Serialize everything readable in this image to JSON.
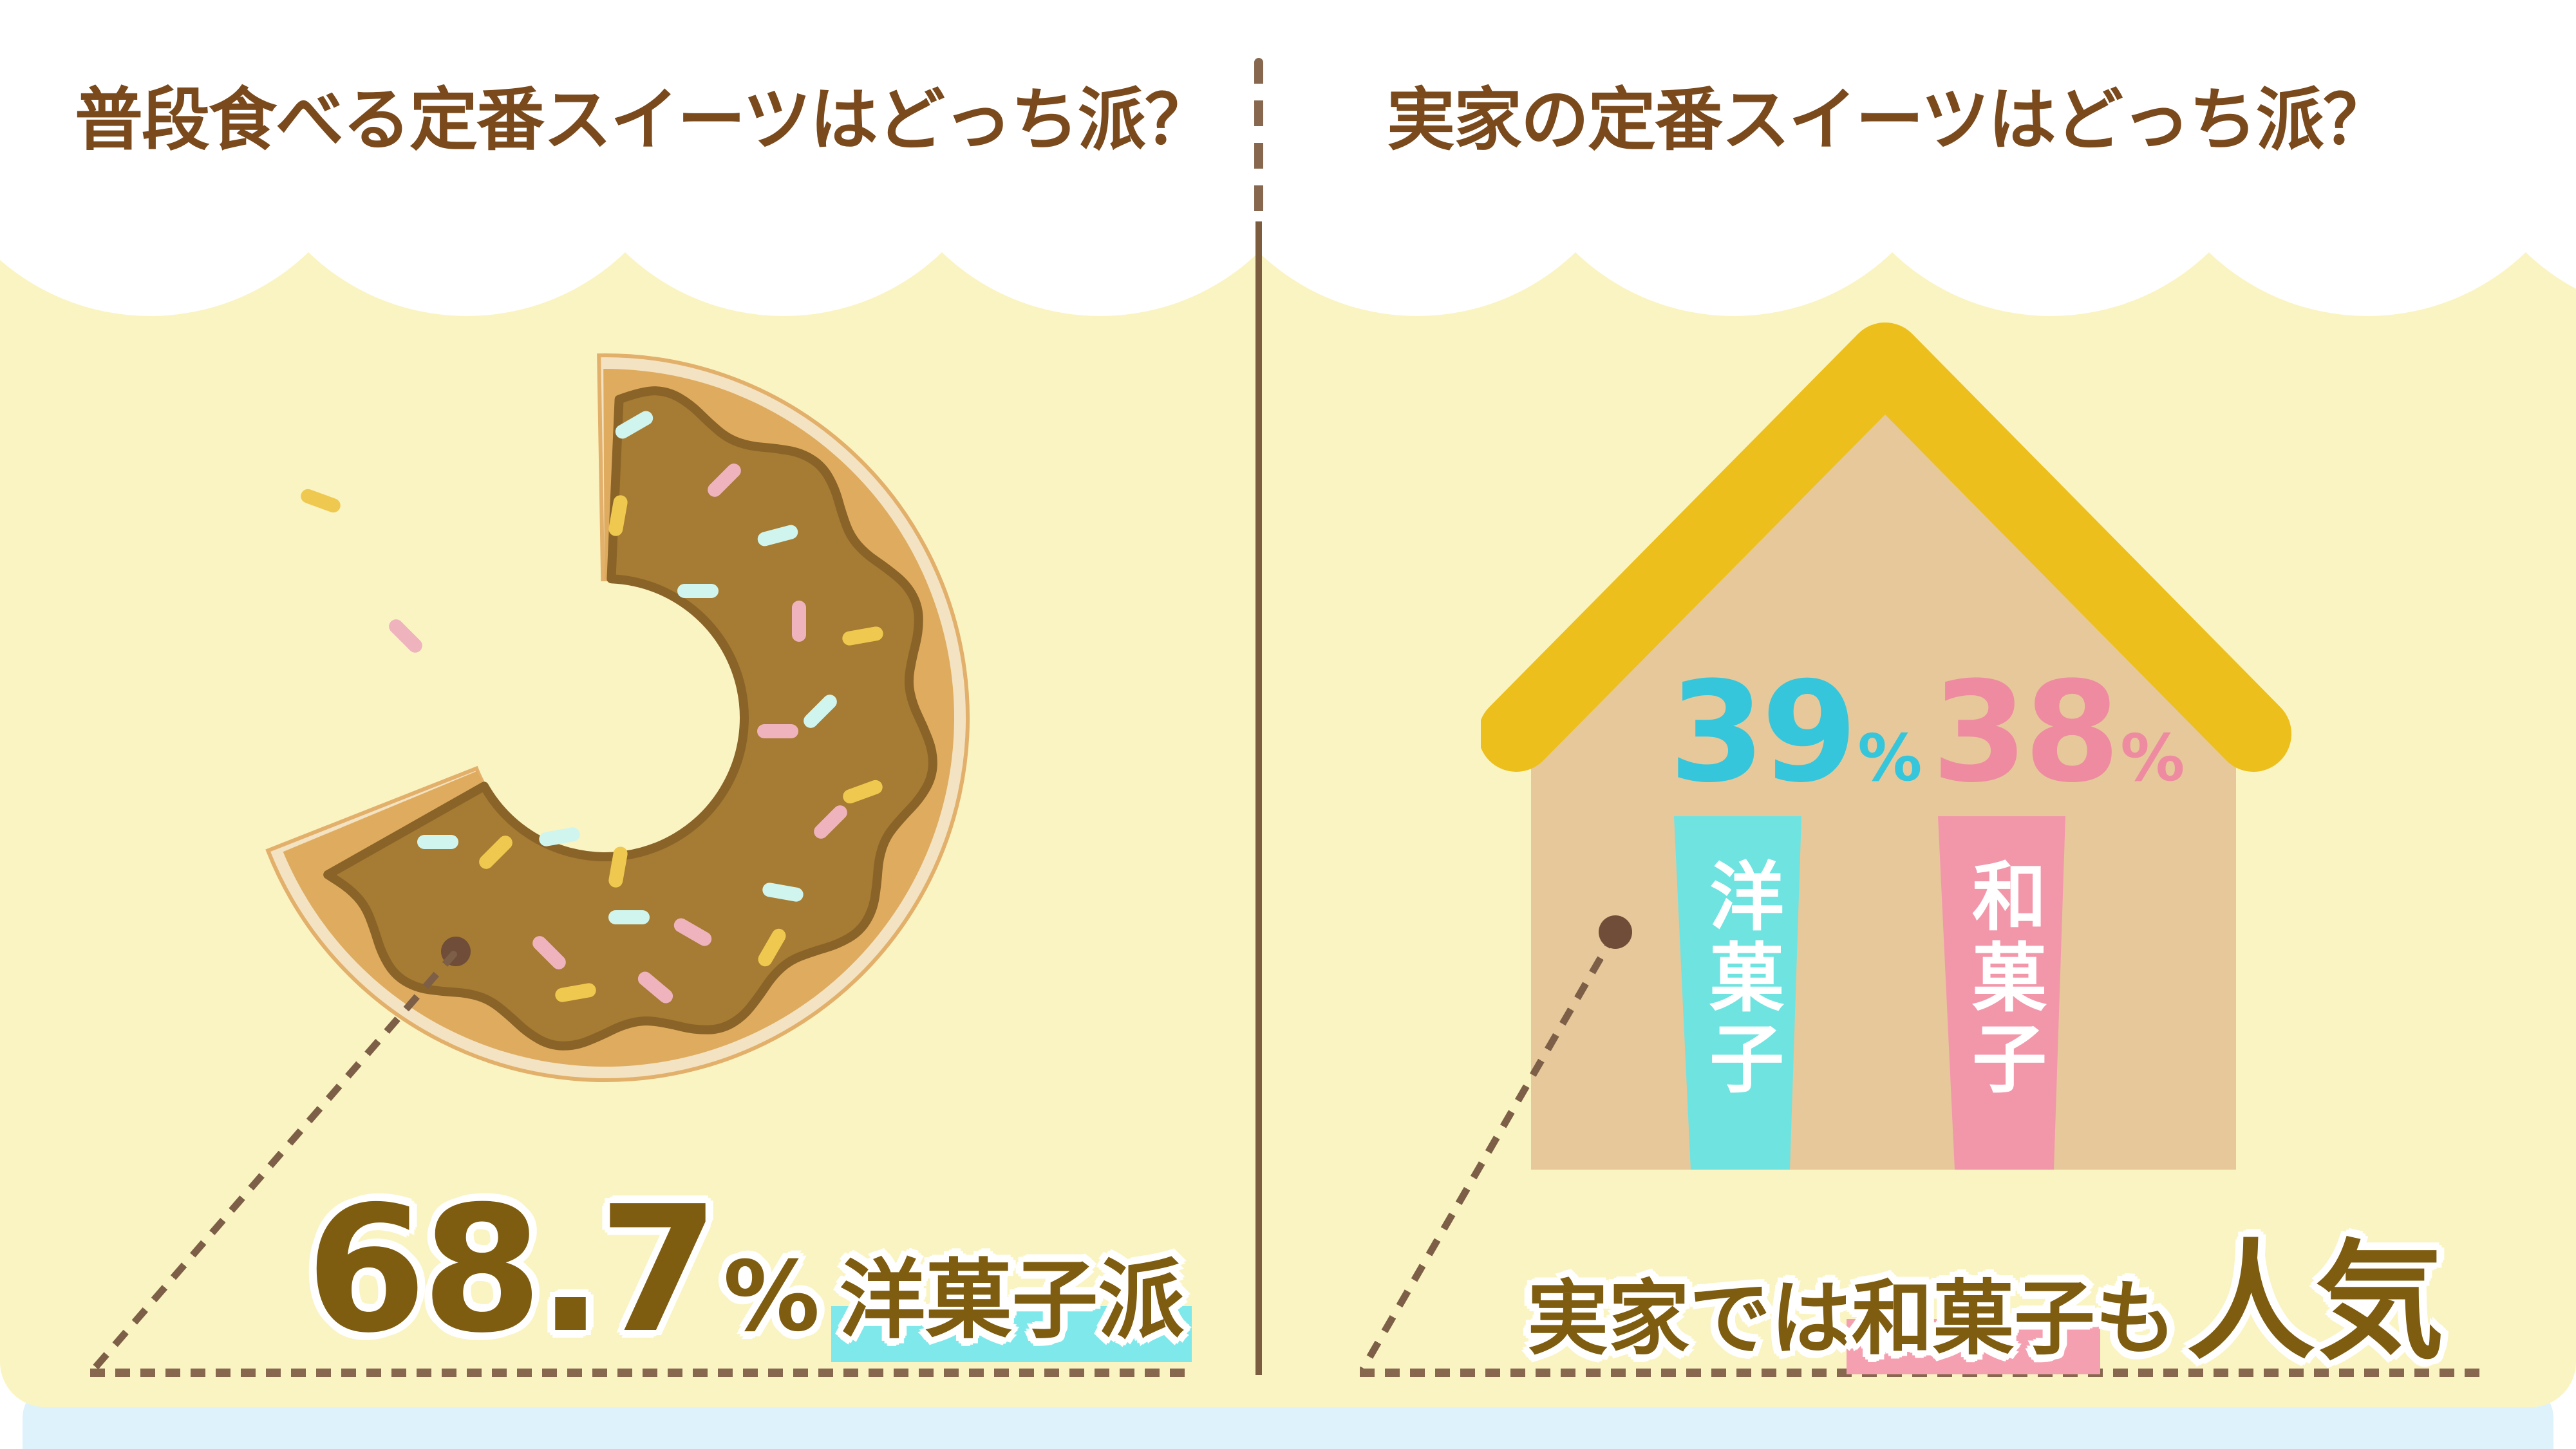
{
  "panels": {
    "left": {
      "title": "普段食べる定番スイーツはどっち派？",
      "stat": {
        "value": "68.7",
        "unit": "%",
        "label": "洋菓子派"
      }
    },
    "right": {
      "title": "実家の定番スイーツはどっち派？",
      "bars": [
        {
          "label": "洋菓子",
          "value": "39",
          "unit": "%"
        },
        {
          "label": "和菓子",
          "value": "38",
          "unit": "%"
        }
      ],
      "caption": {
        "prefix": "実家では",
        "highlight": "和菓子",
        "suffix": "も",
        "emphasis": "人気"
      }
    }
  },
  "colors": {
    "background_yellow": "#FAF4C2",
    "cloud_white": "#FFFFFF",
    "footer_blue": "#DEF2FB",
    "title_brown": "#7A4A1D",
    "stat_brown": "#7E5C10",
    "dashed_line_brown": "#87684F",
    "divider_brown": "#7B5C3F",
    "cyan_number": "#36C6DB",
    "pink_number": "#EE8BA1",
    "cyan_bar": "#6FE3E0",
    "pink_bar": "#F297AA",
    "cyan_highlight": "#7FE8EA",
    "pink_highlight": "#F4A0B1",
    "roof_gold": "#ECBF1C",
    "house_tan": "#E6C89B",
    "donut": {
      "base": "#F3E3C2",
      "edge": "#E2B06A",
      "mid": "#DFAC5F",
      "glaze": "#A67B33",
      "rim": "#8A6328",
      "crumb": "#6F4D38"
    },
    "sprinkles": [
      "#CFF5EE",
      "#EFB3BE",
      "#EFC94F"
    ]
  },
  "chart_data": [
    {
      "type": "pie",
      "title": "普段食べる定番スイーツはどっち派？",
      "labels": [
        "洋菓子派"
      ],
      "values": [
        68.7
      ],
      "unit": "%",
      "annotation": "68.7% 洋菓子派",
      "notes": "shown as a bitten donut: 68.7% of the ring remains, ~31.3% bitten away",
      "legend_position": "none"
    },
    {
      "type": "bar",
      "title": "実家の定番スイーツはどっち派？",
      "categories": [
        "洋菓子",
        "和菓子"
      ],
      "values": [
        39,
        38
      ],
      "unit": "%",
      "ylim": [
        0,
        100
      ],
      "annotation": "実家では和菓子も人気",
      "notes": "two tapered columns drawn inside a house pictogram"
    }
  ]
}
